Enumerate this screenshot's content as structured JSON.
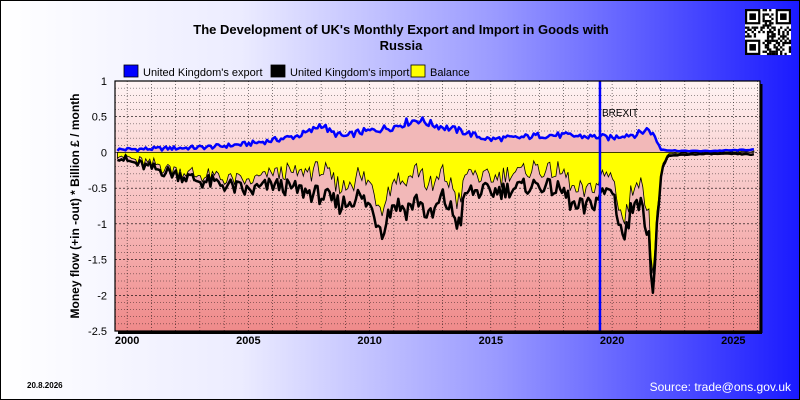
{
  "chart_data": {
    "type": "area",
    "title": "The Development of UK's Monthly Export and Import in Goods with Russia",
    "title_lines": [
      "The Development of UK's Monthly Export and Import in Goods with",
      "Russia"
    ],
    "ylabel": "Money flow (+in -out) * Billion £ / month",
    "ylim": [
      -2.5,
      1
    ],
    "xlim": [
      1999.5,
      2026.1
    ],
    "y_ticks": [
      "1",
      "0.5",
      "0",
      "-0.5",
      "-1",
      "-1.5",
      "-2",
      "-2.5"
    ],
    "x_ticks": [
      "2000",
      "2005",
      "2010",
      "2015",
      "2020",
      "2025"
    ],
    "grid": true,
    "legend_position": "top",
    "annotation": {
      "label": "BREXIT",
      "x": 2019.5
    },
    "series": [
      {
        "name": "United Kingdom's export",
        "color": "#0000ff",
        "x": [
          1999.6,
          2001,
          2002,
          2003,
          2004,
          2005,
          2006,
          2007,
          2007.6,
          2008,
          2008.4,
          2009,
          2009.5,
          2010,
          2011,
          2011.5,
          2012,
          2012.5,
          2013,
          2014,
          2014.5,
          2015,
          2015.5,
          2016,
          2017,
          2018,
          2019,
          2019.5,
          2020,
          2020.5,
          2021,
          2021.5,
          2021.8,
          2022.0,
          2022.3,
          2023,
          2024,
          2025,
          2025.9
        ],
        "values": [
          0.04,
          0.05,
          0.06,
          0.07,
          0.09,
          0.12,
          0.17,
          0.23,
          0.3,
          0.4,
          0.28,
          0.22,
          0.28,
          0.3,
          0.36,
          0.42,
          0.46,
          0.4,
          0.36,
          0.28,
          0.22,
          0.18,
          0.2,
          0.2,
          0.24,
          0.24,
          0.22,
          0.22,
          0.2,
          0.25,
          0.25,
          0.33,
          0.2,
          0.05,
          0.03,
          0.02,
          0.02,
          0.03,
          0.04
        ]
      },
      {
        "name": "United Kingdom's import",
        "color": "#000000",
        "x": [
          1999.6,
          2000,
          2001,
          2002,
          2003,
          2004,
          2005,
          2006,
          2007,
          2008,
          2008.6,
          2009,
          2009.5,
          2010,
          2010.5,
          2011,
          2011.5,
          2012,
          2012.5,
          2013,
          2013.7,
          2014,
          2015,
          2016,
          2017,
          2018,
          2018.5,
          2019,
          2019.5,
          2020,
          2020.3,
          2020.5,
          2021,
          2021.3,
          2021.5,
          2021.7,
          2022.0,
          2022.3,
          2023,
          2024,
          2025,
          2025.9
        ],
        "values": [
          -0.05,
          -0.12,
          -0.22,
          -0.3,
          -0.4,
          -0.45,
          -0.55,
          -0.45,
          -0.52,
          -0.6,
          -0.72,
          -0.72,
          -0.6,
          -0.75,
          -1.05,
          -0.7,
          -0.8,
          -0.65,
          -0.95,
          -0.62,
          -1.0,
          -0.55,
          -0.55,
          -0.5,
          -0.45,
          -0.55,
          -0.8,
          -0.78,
          -0.6,
          -0.5,
          -0.95,
          -1.22,
          -0.55,
          -0.9,
          -1.0,
          -2.0,
          -0.3,
          -0.05,
          -0.03,
          -0.02,
          -0.02,
          -0.03
        ]
      },
      {
        "name": "Balance",
        "color": "#ffff00",
        "x": [
          1999.6,
          2000,
          2001,
          2002,
          2003,
          2004,
          2005,
          2006,
          2007,
          2008,
          2008.6,
          2009,
          2009.5,
          2010,
          2010.5,
          2011,
          2011.5,
          2012,
          2012.5,
          2013,
          2013.7,
          2014,
          2015,
          2016,
          2017,
          2018,
          2018.5,
          2019,
          2019.5,
          2020,
          2020.3,
          2020.5,
          2021,
          2021.3,
          2021.5,
          2021.7,
          2022.0,
          2022.3,
          2023,
          2024,
          2025,
          2025.9
        ],
        "values": [
          -0.01,
          -0.07,
          -0.17,
          -0.24,
          -0.32,
          -0.36,
          -0.43,
          -0.28,
          -0.29,
          -0.2,
          -0.44,
          -0.5,
          -0.32,
          -0.45,
          -0.7,
          -0.34,
          -0.38,
          -0.19,
          -0.55,
          -0.26,
          -0.7,
          -0.27,
          -0.37,
          -0.3,
          -0.21,
          -0.31,
          -0.58,
          -0.56,
          -0.38,
          -0.3,
          -0.72,
          -0.97,
          -0.3,
          -0.6,
          -0.67,
          -1.85,
          -0.25,
          -0.02,
          -0.01,
          0.0,
          0.01,
          0.01
        ]
      }
    ]
  },
  "footer": {
    "date": "20.8.2026",
    "source": "Source: trade@ons.gov.uk"
  },
  "colors": {
    "plot_top": "#fff4f4",
    "plot_bottom": "#ef8a8a",
    "gap_fill": "#f2b8b8",
    "brexit_line": "#0000ff"
  }
}
